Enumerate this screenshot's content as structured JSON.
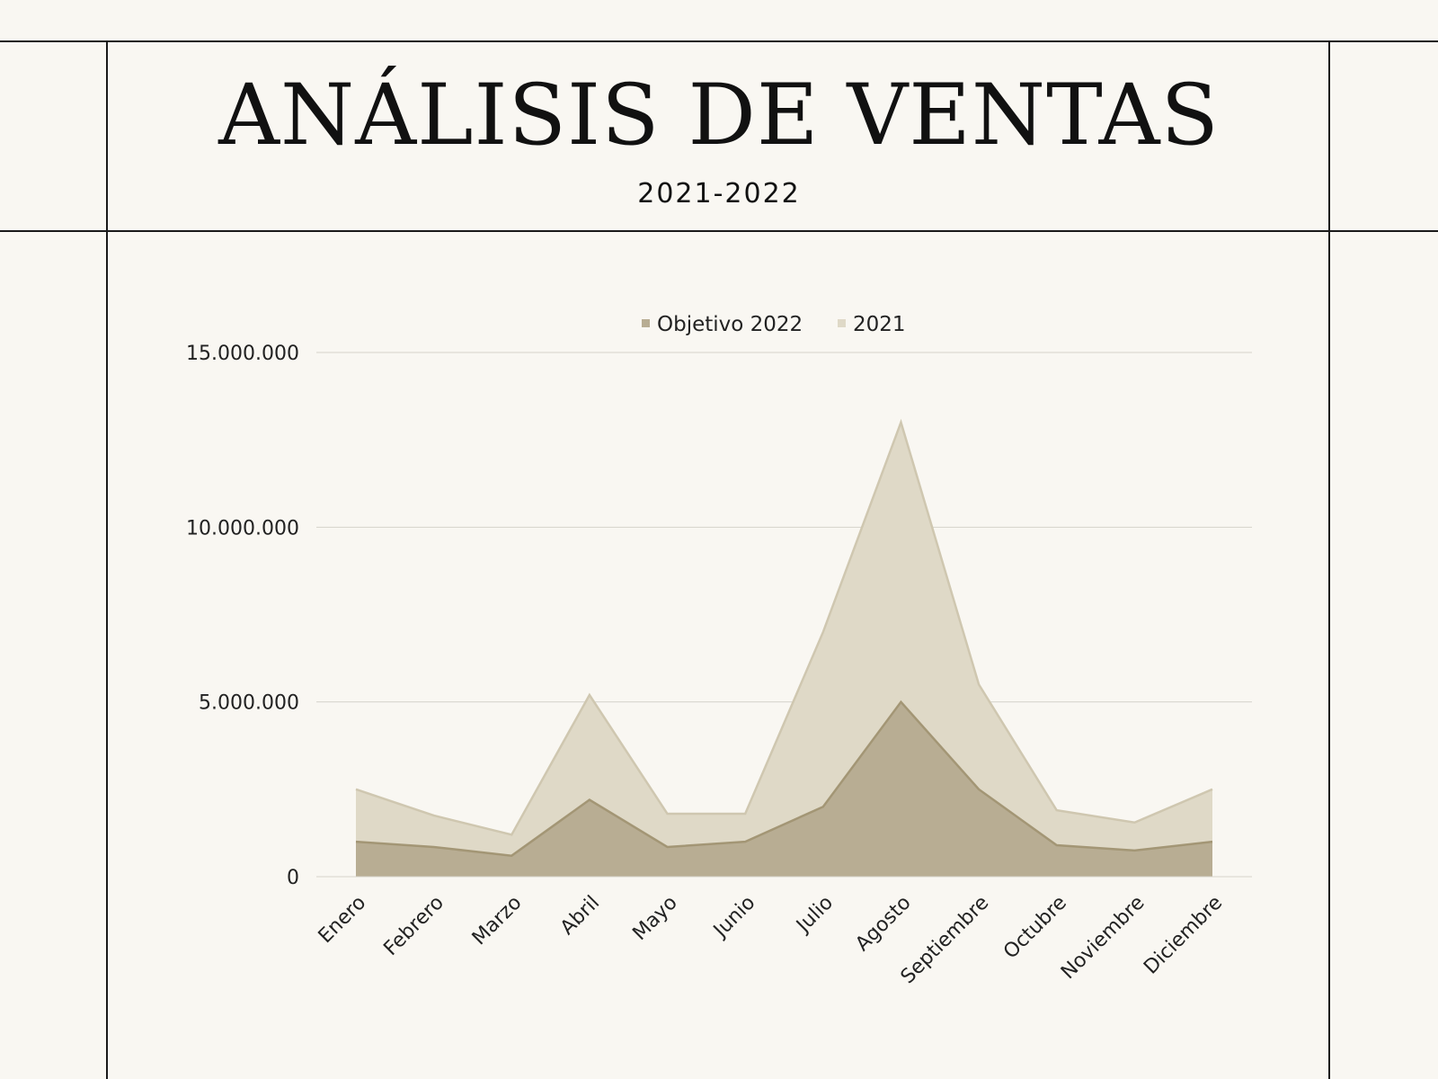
{
  "header": {
    "title": "ANÁLISIS DE VENTAS",
    "subtitle": "2021-2022"
  },
  "colors": {
    "background": "#f9f7f2",
    "series_2022": "#b8ad93",
    "series_2022_line": "#a39675",
    "series_2021": "#dfd9c7",
    "series_2021_line": "#cfc7b0",
    "grid": "#d6d3cb"
  },
  "chart_data": {
    "type": "area",
    "title": "",
    "xlabel": "",
    "ylabel": "",
    "ylim": [
      0,
      15000000
    ],
    "yticks": [
      0,
      5000000,
      10000000,
      15000000
    ],
    "ytick_labels": [
      "0",
      "5.000.000",
      "10.000.000",
      "15.000.000"
    ],
    "grid": true,
    "legend_position": "top-center",
    "categories": [
      "Enero",
      "Febrero",
      "Marzo",
      "Abril",
      "Mayo",
      "Junio",
      "Julio",
      "Agosto",
      "Septiembre",
      "Octubre",
      "Noviembre",
      "Diciembre"
    ],
    "series": [
      {
        "name": "Objetivo 2022",
        "values": [
          1000000,
          850000,
          600000,
          2200000,
          850000,
          1000000,
          2000000,
          5000000,
          2500000,
          900000,
          750000,
          1000000
        ]
      },
      {
        "name": "2021",
        "values": [
          2500000,
          1750000,
          1200000,
          5200000,
          1800000,
          1800000,
          7000000,
          13000000,
          5500000,
          1900000,
          1550000,
          2500000
        ]
      }
    ]
  }
}
